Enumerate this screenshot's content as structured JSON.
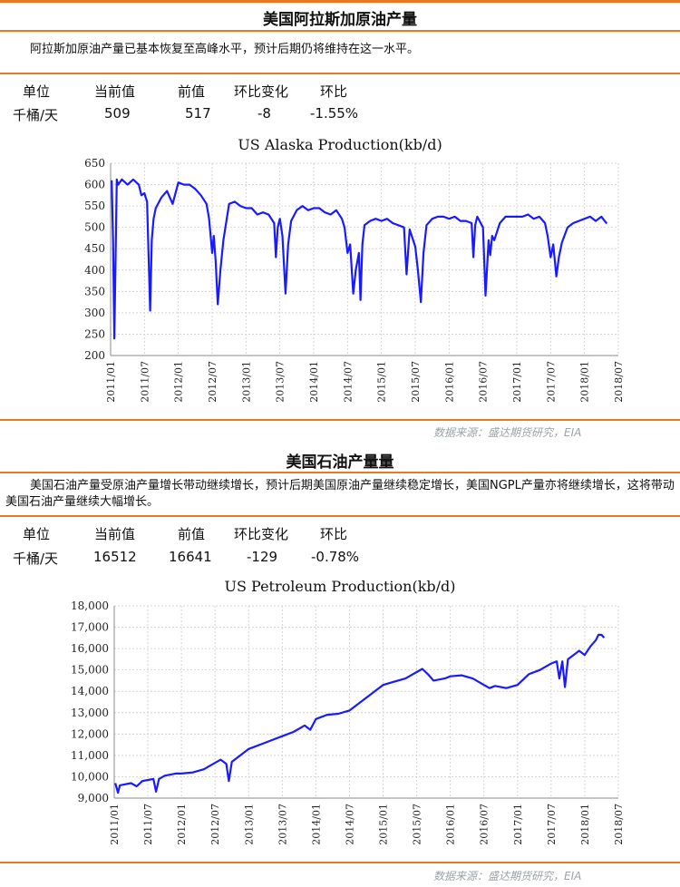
{
  "sections": [
    {
      "title": "美国阿拉斯加原油产量",
      "description": "阿拉斯加原油产量已基本恢复至高峰水平，预计后期仍将维持在这一水平。",
      "table": {
        "headers": [
          "单位",
          "当前值",
          "前值",
          "环比变化",
          "环比"
        ],
        "row": [
          "千桶/天",
          "509",
          "517",
          "-8",
          "-1.55%"
        ]
      },
      "source": "数据来源：盛达期货研究，EIA"
    },
    {
      "title": "美国石油产量量",
      "description": "美国石油产量受原油产量增长带动继续增长，预计后期美国原油产量继续稳定增长，美国NGPL产量亦将继续增长，这将带动美国石油产量继续大幅增长。",
      "table": {
        "headers": [
          "单位",
          "当前值",
          "前值",
          "环比变化",
          "环比"
        ],
        "row": [
          "千桶/天",
          "16512",
          "16641",
          "-129",
          "-0.78%"
        ]
      },
      "source": "数据来源：盛达期货研究，EIA"
    }
  ],
  "chart_data": [
    {
      "type": "line",
      "title": "US Alaska Production(kb/d)",
      "xlabel": "",
      "ylabel": "",
      "ylim": [
        200,
        650
      ],
      "y_ticks": [
        200,
        250,
        300,
        350,
        400,
        450,
        500,
        550,
        600,
        650
      ],
      "x_ticks": [
        "2011/01",
        "2011/07",
        "2012/01",
        "2012/07",
        "2013/01",
        "2013/07",
        "2014/01",
        "2014/07",
        "2015/01",
        "2015/07",
        "2016/01",
        "2016/07",
        "2017/01",
        "2017/07",
        "2018/01",
        "2018/07"
      ],
      "grid": true,
      "line_color": "#1a1aff",
      "series": [
        {
          "values": [
            [
              "2011/01/07",
              610
            ],
            [
              "2011/01/14",
              470
            ],
            [
              "2011/01/21",
              240
            ],
            [
              "2011/01/28",
              430
            ],
            [
              "2011/02/04",
              612
            ],
            [
              "2011/02/11",
              600
            ],
            [
              "2011/03/01",
              612
            ],
            [
              "2011/04/01",
              600
            ],
            [
              "2011/05/01",
              612
            ],
            [
              "2011/06/01",
              600
            ],
            [
              "2011/06/15",
              575
            ],
            [
              "2011/07/01",
              580
            ],
            [
              "2011/07/15",
              560
            ],
            [
              "2011/08/01",
              305
            ],
            [
              "2011/08/10",
              470
            ],
            [
              "2011/08/20",
              520
            ],
            [
              "2011/09/01",
              545
            ],
            [
              "2011/10/01",
              570
            ],
            [
              "2011/11/01",
              585
            ],
            [
              "2011/12/01",
              555
            ],
            [
              "2012/01/01",
              605
            ],
            [
              "2012/02/01",
              600
            ],
            [
              "2012/03/01",
              600
            ],
            [
              "2012/04/01",
              590
            ],
            [
              "2012/05/01",
              575
            ],
            [
              "2012/06/01",
              555
            ],
            [
              "2012/06/15",
              520
            ],
            [
              "2012/07/01",
              440
            ],
            [
              "2012/07/10",
              480
            ],
            [
              "2012/07/20",
              420
            ],
            [
              "2012/08/01",
              320
            ],
            [
              "2012/08/15",
              400
            ],
            [
              "2012/09/01",
              470
            ],
            [
              "2012/10/01",
              555
            ],
            [
              "2012/11/01",
              560
            ],
            [
              "2012/12/01",
              550
            ],
            [
              "2013/01/01",
              545
            ],
            [
              "2013/02/01",
              545
            ],
            [
              "2013/03/01",
              530
            ],
            [
              "2013/04/01",
              535
            ],
            [
              "2013/05/01",
              530
            ],
            [
              "2013/06/01",
              510
            ],
            [
              "2013/06/10",
              430
            ],
            [
              "2013/06/20",
              500
            ],
            [
              "2013/07/01",
              520
            ],
            [
              "2013/07/15",
              480
            ],
            [
              "2013/08/01",
              345
            ],
            [
              "2013/08/15",
              460
            ],
            [
              "2013/09/01",
              515
            ],
            [
              "2013/10/01",
              540
            ],
            [
              "2013/11/01",
              550
            ],
            [
              "2013/12/01",
              540
            ],
            [
              "2014/01/01",
              545
            ],
            [
              "2014/02/01",
              545
            ],
            [
              "2014/03/01",
              535
            ],
            [
              "2014/04/01",
              530
            ],
            [
              "2014/05/01",
              540
            ],
            [
              "2014/06/01",
              520
            ],
            [
              "2014/06/15",
              500
            ],
            [
              "2014/07/01",
              440
            ],
            [
              "2014/07/15",
              460
            ],
            [
              "2014/08/01",
              345
            ],
            [
              "2014/08/15",
              400
            ],
            [
              "2014/09/01",
              440
            ],
            [
              "2014/09/10",
              330
            ],
            [
              "2014/09/20",
              460
            ],
            [
              "2014/10/01",
              505
            ],
            [
              "2014/11/01",
              515
            ],
            [
              "2014/12/01",
              520
            ],
            [
              "2015/01/01",
              515
            ],
            [
              "2015/02/01",
              520
            ],
            [
              "2015/03/01",
              510
            ],
            [
              "2015/04/01",
              505
            ],
            [
              "2015/05/01",
              500
            ],
            [
              "2015/05/15",
              390
            ],
            [
              "2015/06/01",
              495
            ],
            [
              "2015/07/01",
              455
            ],
            [
              "2015/07/15",
              400
            ],
            [
              "2015/08/01",
              325
            ],
            [
              "2015/08/15",
              440
            ],
            [
              "2015/09/01",
              505
            ],
            [
              "2015/10/01",
              520
            ],
            [
              "2015/11/01",
              525
            ],
            [
              "2015/12/01",
              525
            ],
            [
              "2016/01/01",
              520
            ],
            [
              "2016/02/01",
              525
            ],
            [
              "2016/03/01",
              515
            ],
            [
              "2016/04/01",
              515
            ],
            [
              "2016/05/01",
              510
            ],
            [
              "2016/05/10",
              430
            ],
            [
              "2016/05/20",
              505
            ],
            [
              "2016/06/01",
              525
            ],
            [
              "2016/07/01",
              500
            ],
            [
              "2016/07/15",
              340
            ],
            [
              "2016/08/01",
              470
            ],
            [
              "2016/08/10",
              435
            ],
            [
              "2016/08/20",
              480
            ],
            [
              "2016/09/01",
              470
            ],
            [
              "2016/10/01",
              510
            ],
            [
              "2016/11/01",
              525
            ],
            [
              "2016/12/01",
              525
            ],
            [
              "2017/01/01",
              525
            ],
            [
              "2017/02/01",
              525
            ],
            [
              "2017/03/01",
              530
            ],
            [
              "2017/04/01",
              520
            ],
            [
              "2017/05/01",
              525
            ],
            [
              "2017/06/01",
              510
            ],
            [
              "2017/06/15",
              480
            ],
            [
              "2017/07/01",
              430
            ],
            [
              "2017/07/15",
              460
            ],
            [
              "2017/08/01",
              385
            ],
            [
              "2017/08/15",
              430
            ],
            [
              "2017/09/01",
              465
            ],
            [
              "2017/10/01",
              500
            ],
            [
              "2017/11/01",
              510
            ],
            [
              "2017/12/01",
              515
            ],
            [
              "2018/01/01",
              520
            ],
            [
              "2018/02/01",
              525
            ],
            [
              "2018/03/01",
              515
            ],
            [
              "2018/04/01",
              525
            ],
            [
              "2018/04/15",
              517
            ],
            [
              "2018/04/30",
              509
            ]
          ]
        }
      ]
    },
    {
      "type": "line",
      "title": "US Petroleum Production(kb/d)",
      "xlabel": "",
      "ylabel": "",
      "ylim": [
        9000,
        18000
      ],
      "y_ticks": [
        "9,000",
        "10,000",
        "11,000",
        "12,000",
        "13,000",
        "14,000",
        "15,000",
        "16,000",
        "17,000",
        "18,000"
      ],
      "x_ticks": [
        "2011/01",
        "2011/07",
        "2012/01",
        "2012/07",
        "2013/01",
        "2013/07",
        "2014/01",
        "2014/07",
        "2015/01",
        "2015/07",
        "2016/01",
        "2016/07",
        "2017/01",
        "2017/07",
        "2018/01",
        "2018/07"
      ],
      "grid": true,
      "line_color": "#1a1aff",
      "series": [
        {
          "values": [
            [
              "2011/01/07",
              9700
            ],
            [
              "2011/01/21",
              9250
            ],
            [
              "2011/02/01",
              9600
            ],
            [
              "2011/03/01",
              9650
            ],
            [
              "2011/04/01",
              9700
            ],
            [
              "2011/05/01",
              9550
            ],
            [
              "2011/06/01",
              9800
            ],
            [
              "2011/07/01",
              9850
            ],
            [
              "2011/08/01",
              9900
            ],
            [
              "2011/08/15",
              9300
            ],
            [
              "2011/09/01",
              9900
            ],
            [
              "2011/10/01",
              10050
            ],
            [
              "2011/11/01",
              10100
            ],
            [
              "2011/12/01",
              10150
            ],
            [
              "2012/01/01",
              10150
            ],
            [
              "2012/03/01",
              10200
            ],
            [
              "2012/05/01",
              10350
            ],
            [
              "2012/07/01",
              10650
            ],
            [
              "2012/08/01",
              10800
            ],
            [
              "2012/09/01",
              10600
            ],
            [
              "2012/09/15",
              9800
            ],
            [
              "2012/10/01",
              10700
            ],
            [
              "2012/11/01",
              10900
            ],
            [
              "2013/01/01",
              11300
            ],
            [
              "2013/03/01",
              11500
            ],
            [
              "2013/05/01",
              11700
            ],
            [
              "2013/07/01",
              11900
            ],
            [
              "2013/09/01",
              12100
            ],
            [
              "2013/11/01",
              12400
            ],
            [
              "2013/12/01",
              12200
            ],
            [
              "2014/01/01",
              12700
            ],
            [
              "2014/03/01",
              12900
            ],
            [
              "2014/05/01",
              12950
            ],
            [
              "2014/07/01",
              13100
            ],
            [
              "2014/09/01",
              13500
            ],
            [
              "2014/11/01",
              13900
            ],
            [
              "2015/01/01",
              14300
            ],
            [
              "2015/03/01",
              14450
            ],
            [
              "2015/05/01",
              14600
            ],
            [
              "2015/07/01",
              14900
            ],
            [
              "2015/08/01",
              15050
            ],
            [
              "2015/09/01",
              14800
            ],
            [
              "2015/10/01",
              14500
            ],
            [
              "2015/12/01",
              14600
            ],
            [
              "2016/01/01",
              14700
            ],
            [
              "2016/03/01",
              14750
            ],
            [
              "2016/05/01",
              14600
            ],
            [
              "2016/07/01",
              14300
            ],
            [
              "2016/08/01",
              14150
            ],
            [
              "2016/09/01",
              14250
            ],
            [
              "2016/11/01",
              14150
            ],
            [
              "2017/01/01",
              14300
            ],
            [
              "2017/03/01",
              14800
            ],
            [
              "2017/05/01",
              15000
            ],
            [
              "2017/07/01",
              15300
            ],
            [
              "2017/08/01",
              15400
            ],
            [
              "2017/08/15",
              14600
            ],
            [
              "2017/09/01",
              15400
            ],
            [
              "2017/09/15",
              14200
            ],
            [
              "2017/10/01",
              15500
            ],
            [
              "2017/11/01",
              15700
            ],
            [
              "2017/12/01",
              15900
            ],
            [
              "2018/01/01",
              15700
            ],
            [
              "2018/02/01",
              16100
            ],
            [
              "2018/03/01",
              16400
            ],
            [
              "2018/03/15",
              16650
            ],
            [
              "2018/04/01",
              16641
            ],
            [
              "2018/04/15",
              16512
            ]
          ]
        }
      ]
    }
  ]
}
